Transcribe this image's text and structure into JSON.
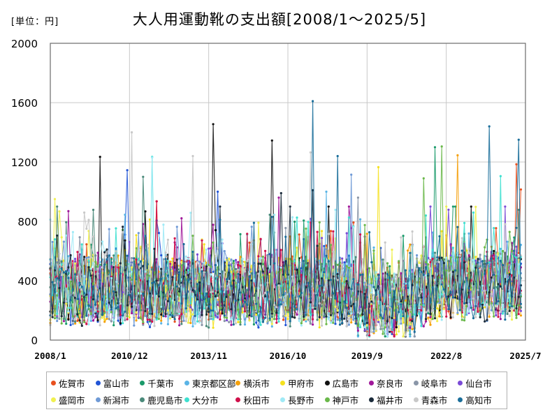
{
  "chart_data": {
    "type": "line",
    "title": "大人用運動靴の支出額[2008/1～2025/5]",
    "unit_label": "[単位：円]",
    "xlabel": "",
    "ylabel": "",
    "x_range": [
      "2008/1",
      "2025/7"
    ],
    "x_ticks": [
      "2008/1",
      "2010/12",
      "2013/11",
      "2016/10",
      "2019/9",
      "2022/8",
      "2025/7"
    ],
    "ylim": [
      0,
      2000
    ],
    "y_ticks": [
      "0",
      "400",
      "800",
      "1200",
      "1600",
      "2000"
    ],
    "grid": true,
    "legend_position": "bottom",
    "series": [
      {
        "name": "佐賀市",
        "color": "#e8501e",
        "peaks": [
          [
            "2011/12",
            935
          ],
          [
            "2025/3",
            1185
          ],
          [
            "2025/5",
            1015
          ]
        ]
      },
      {
        "name": "富山市",
        "color": "#2255d6",
        "peaks": [
          [
            "2010/11",
            1145
          ],
          [
            "2014/3",
            1000
          ]
        ]
      },
      {
        "name": "千葉市",
        "color": "#1a9a6a",
        "peaks": [
          [
            "2022/3",
            1300
          ]
        ]
      },
      {
        "name": "東京都区部",
        "color": "#5ab4e6",
        "peaks": [
          [
            "2018/3",
            1000
          ]
        ]
      },
      {
        "name": "横浜市",
        "color": "#f5a00a",
        "peaks": [
          [
            "2023/1",
            1245
          ]
        ]
      },
      {
        "name": "甲府市",
        "color": "#f5e11e",
        "peaks": [
          [
            "2020/2",
            1165
          ]
        ]
      },
      {
        "name": "広島市",
        "color": "#111111",
        "peaks": [
          [
            "2009/11",
            1235
          ],
          [
            "2014/1",
            1455
          ],
          [
            "2016/3",
            1345
          ]
        ]
      },
      {
        "name": "奈良市",
        "color": "#a0189a",
        "peaks": [
          [
            "2016/6",
            960
          ]
        ]
      },
      {
        "name": "岐阜市",
        "color": "#8a96a8",
        "peaks": [
          [
            "2019/5",
            960
          ]
        ]
      },
      {
        "name": "仙台市",
        "color": "#7a4ad6",
        "peaks": [
          [
            "2022/1",
            900
          ]
        ]
      },
      {
        "name": "盛岡市",
        "color": "#f0f050",
        "peaks": [
          [
            "2008/3",
            950
          ]
        ]
      },
      {
        "name": "新潟市",
        "color": "#6f9ad6",
        "peaks": [
          [
            "2019/2",
            1115
          ]
        ]
      },
      {
        "name": "鹿児島市",
        "color": "#4a8a7a",
        "peaks": [
          [
            "2011/6",
            1100
          ]
        ]
      },
      {
        "name": "大分市",
        "color": "#3ee0d0",
        "peaks": [
          [
            "2011/10",
            1235
          ],
          [
            "2024/8",
            1105
          ]
        ]
      },
      {
        "name": "秋田市",
        "color": "#d0104a",
        "peaks": [
          [
            "2011/12",
            935
          ]
        ]
      },
      {
        "name": "長野市",
        "color": "#a0eaf6",
        "peaks": [
          [
            "2011/10",
            1230
          ]
        ]
      },
      {
        "name": "神戸市",
        "color": "#6ab84a",
        "peaks": [
          [
            "2021/10",
            1090
          ],
          [
            "2022/6",
            1305
          ]
        ]
      },
      {
        "name": "福井市",
        "color": "#1a2a3a",
        "peaks": [
          [
            "2016/7",
            990
          ],
          [
            "2017/9",
            1010
          ]
        ]
      },
      {
        "name": "青森市",
        "color": "#c8c8c8",
        "peaks": [
          [
            "2011/1",
            1400
          ],
          [
            "2013/4",
            1240
          ],
          [
            "2017/8",
            1265
          ]
        ]
      },
      {
        "name": "高知市",
        "color": "#1a6e9a",
        "peaks": [
          [
            "2017/9",
            1610
          ],
          [
            "2018/8",
            1240
          ],
          [
            "2024/3",
            1440
          ],
          [
            "2025/4",
            1350
          ]
        ]
      }
    ]
  }
}
